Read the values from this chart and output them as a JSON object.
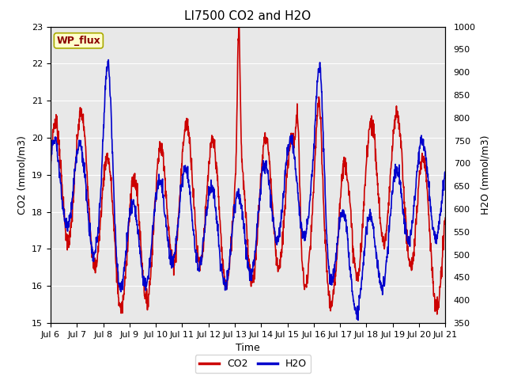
{
  "title": "LI7500 CO2 and H2O",
  "xlabel": "Time",
  "ylabel_left": "CO2 (mmol/m3)",
  "ylabel_right": "H2O (mmol/m3)",
  "ylim_left": [
    15.0,
    23.0
  ],
  "ylim_right": [
    350,
    1000
  ],
  "co2_color": "#cc0000",
  "h2o_color": "#0000cc",
  "fig_bg_color": "#ffffff",
  "axes_bg_color": "#e8e8e8",
  "site_label": "WP_flux",
  "site_label_color": "#8b0000",
  "site_label_bg": "#ffffcc",
  "site_label_edge": "#aaaa00",
  "xtick_labels": [
    "Jul 6",
    "Jul 7",
    "Jul 8",
    "Jul 9",
    "Jul 10",
    "Jul 11",
    "Jul 12",
    "Jul 13",
    "Jul 14",
    "Jul 15",
    "Jul 16",
    "Jul 17",
    "Jul 18",
    "Jul 19",
    "Jul 20",
    "Jul 21"
  ],
  "yticks_left": [
    15.0,
    16.0,
    17.0,
    18.0,
    19.0,
    20.0,
    21.0,
    22.0,
    23.0
  ],
  "yticks_right": [
    350,
    400,
    450,
    500,
    550,
    600,
    650,
    700,
    750,
    800,
    850,
    900,
    950,
    1000
  ],
  "line_width": 1.2,
  "legend_entries": [
    "CO2",
    "H2O"
  ],
  "title_fontsize": 11,
  "axis_label_fontsize": 9,
  "tick_fontsize": 8
}
